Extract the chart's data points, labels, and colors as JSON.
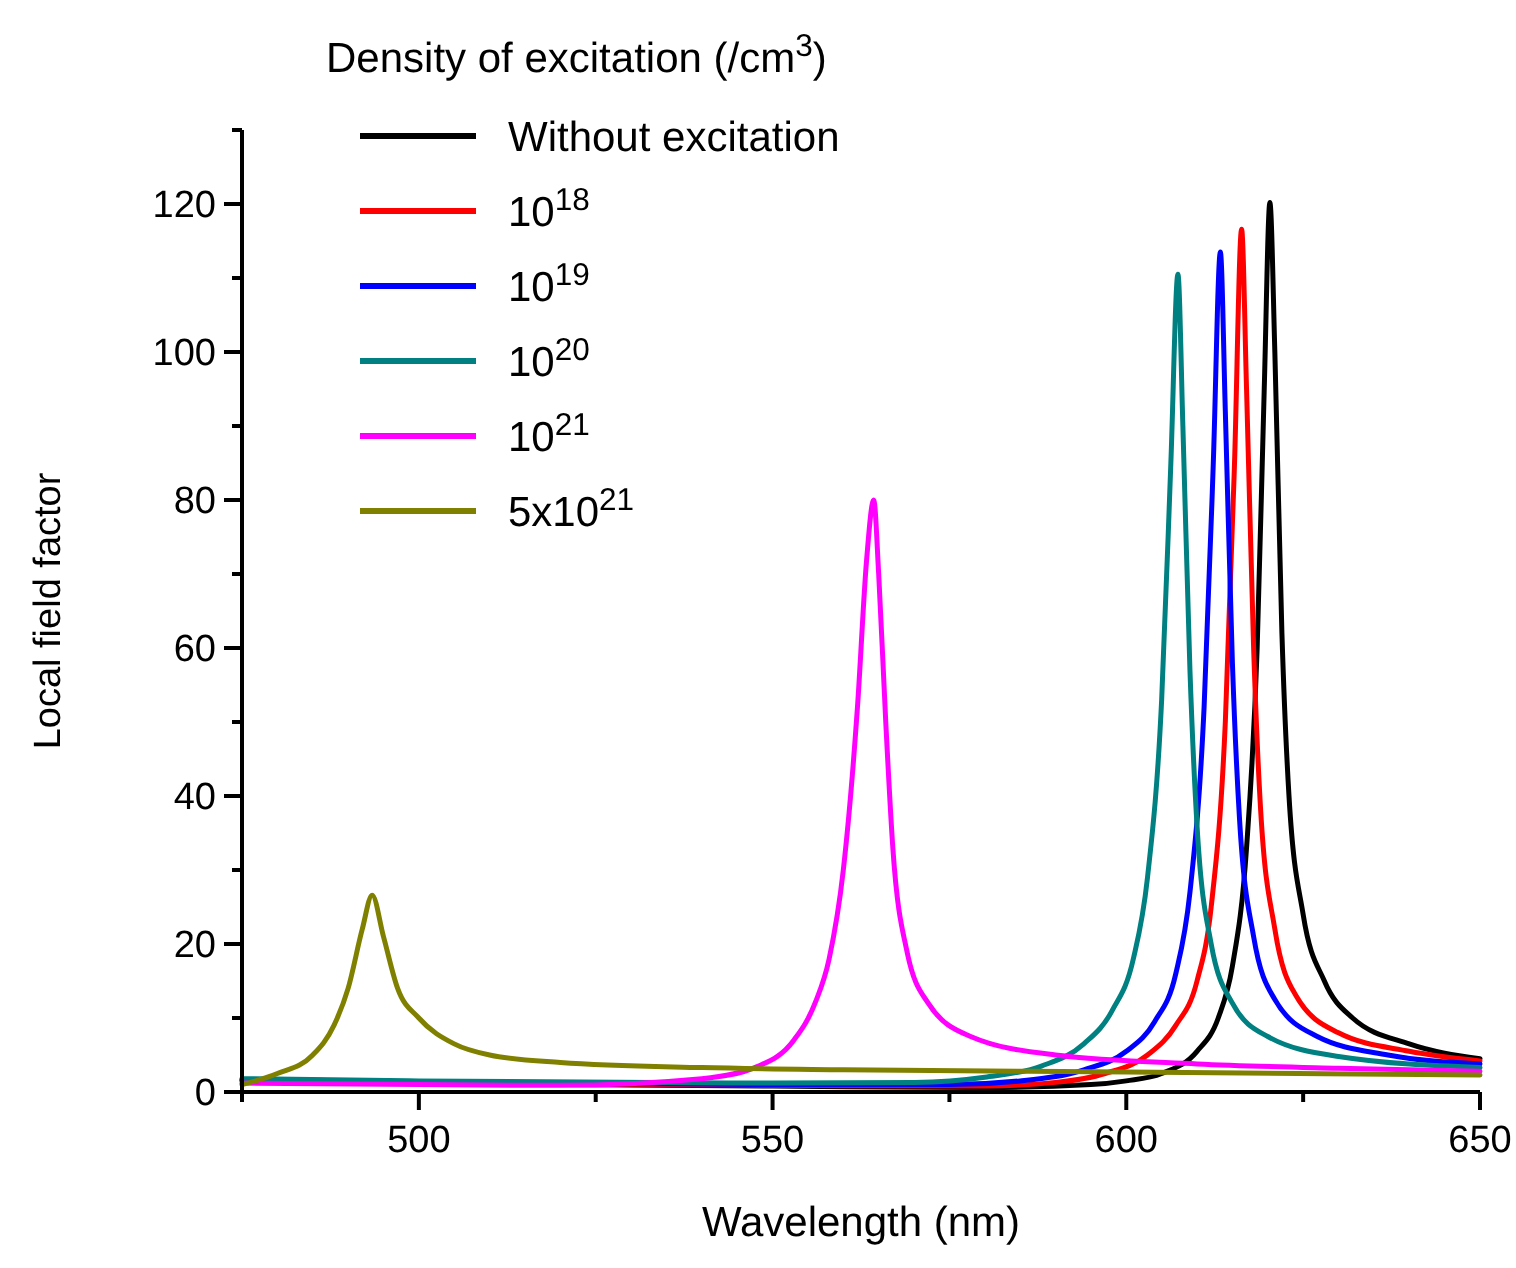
{
  "chart_data": {
    "type": "line",
    "xlabel": "Wavelength (nm)",
    "ylabel": "Local field factor",
    "legend_title": "Density of excitation (/cm$^{3}$)",
    "xlim": [
      475,
      650
    ],
    "xticks": [
      {
        "value": 475,
        "label": null
      },
      500,
      {
        "value": 525,
        "label": null
      },
      550,
      {
        "value": 575,
        "label": null
      },
      600,
      {
        "value": 625,
        "label": null
      },
      650
    ],
    "ylim": [
      0,
      130
    ],
    "yticks": [
      0,
      {
        "value": 10,
        "label": null
      },
      20,
      {
        "value": 30,
        "label": null
      },
      40,
      {
        "value": 50,
        "label": null
      },
      60,
      {
        "value": 70,
        "label": null
      },
      80,
      {
        "value": 90,
        "label": null
      },
      100,
      {
        "value": 110,
        "label": null
      },
      120,
      {
        "value": 130,
        "label": null
      }
    ],
    "grid": false,
    "legend": "top left",
    "marker": "none",
    "line_style": "solid",
    "series": [
      {
        "name": "Without excitation",
        "color": "#000000",
        "x": [
          475,
          500,
          550,
          580,
          595,
          600,
          605,
          610,
          613,
          615,
          617,
          618.5,
          619.5,
          620.3,
          621,
          622,
          623,
          625,
          628,
          632,
          640,
          650
        ],
        "values": [
          1.5,
          1.2,
          0.8,
          0.6,
          1.0,
          1.5,
          2.5,
          5.5,
          10,
          17,
          33,
          60,
          95,
          120.2,
          100,
          62,
          40,
          24,
          15,
          10,
          6.5,
          4.5
        ]
      },
      {
        "name": "10$^{18}$",
        "color": "#ff0000",
        "x": [
          475,
          500,
          550,
          580,
          590,
          597,
          603,
          607,
          610,
          612,
          614,
          615.3,
          616.3,
          617,
          618,
          619,
          621,
          624,
          630,
          640,
          650
        ],
        "values": [
          1.6,
          1.3,
          0.9,
          0.8,
          1.3,
          2.5,
          5,
          9,
          15,
          25,
          50,
          85,
          116.6,
          95,
          60,
          38,
          22,
          13,
          8,
          5.5,
          4.2
        ]
      },
      {
        "name": "10$^{19}$",
        "color": "#0000ff",
        "x": [
          475,
          500,
          550,
          575,
          585,
          594,
          600,
          604,
          607,
          609,
          611,
          612.3,
          613.3,
          614,
          615,
          616,
          618,
          621,
          627,
          637,
          650
        ],
        "values": [
          1.7,
          1.4,
          1.0,
          1.0,
          1.5,
          3,
          5.5,
          9.5,
          16,
          27,
          52,
          85,
          113.5,
          92,
          58,
          37,
          21,
          12.5,
          7.5,
          5,
          3.8
        ]
      },
      {
        "name": "10$^{20}$",
        "color": "#008080",
        "x": [
          475,
          500,
          550,
          570,
          580,
          588,
          594,
          598,
          601,
          603,
          605,
          606.3,
          607.3,
          608,
          609,
          610,
          612,
          615,
          620,
          630,
          650
        ],
        "values": [
          1.8,
          1.5,
          1.2,
          1.3,
          2,
          3.5,
          6.5,
          11,
          18,
          29,
          53,
          85,
          110.5,
          90,
          57,
          36,
          20,
          12,
          7.5,
          4.8,
          3.3
        ]
      },
      {
        "name": "10$^{21}$",
        "color": "#ff00ff",
        "x": [
          475,
          500,
          520,
          540,
          548,
          553,
          556,
          558,
          560,
          562,
          563.3,
          564.3,
          565,
          566,
          567,
          569,
          572,
          578,
          590,
          610,
          630,
          650
        ],
        "values": [
          1.2,
          1.0,
          0.9,
          1.8,
          3.5,
          7,
          12,
          18,
          30,
          52,
          72,
          80,
          70,
          50,
          33,
          19,
          12,
          7.5,
          5,
          3.8,
          3.2,
          2.8
        ]
      },
      {
        "name": "5x10$^{21}$",
        "color": "#808000",
        "x": [
          475,
          480,
          485,
          488,
          490,
          492,
          493.4,
          495,
          497,
          500,
          505,
          510,
          520,
          540,
          560,
          600,
          650
        ],
        "values": [
          1.0,
          2.5,
          5,
          9,
          14,
          22,
          26.6,
          21,
          14,
          10,
          6.5,
          5,
          4,
          3.3,
          3,
          2.7,
          2.3
        ]
      }
    ]
  }
}
